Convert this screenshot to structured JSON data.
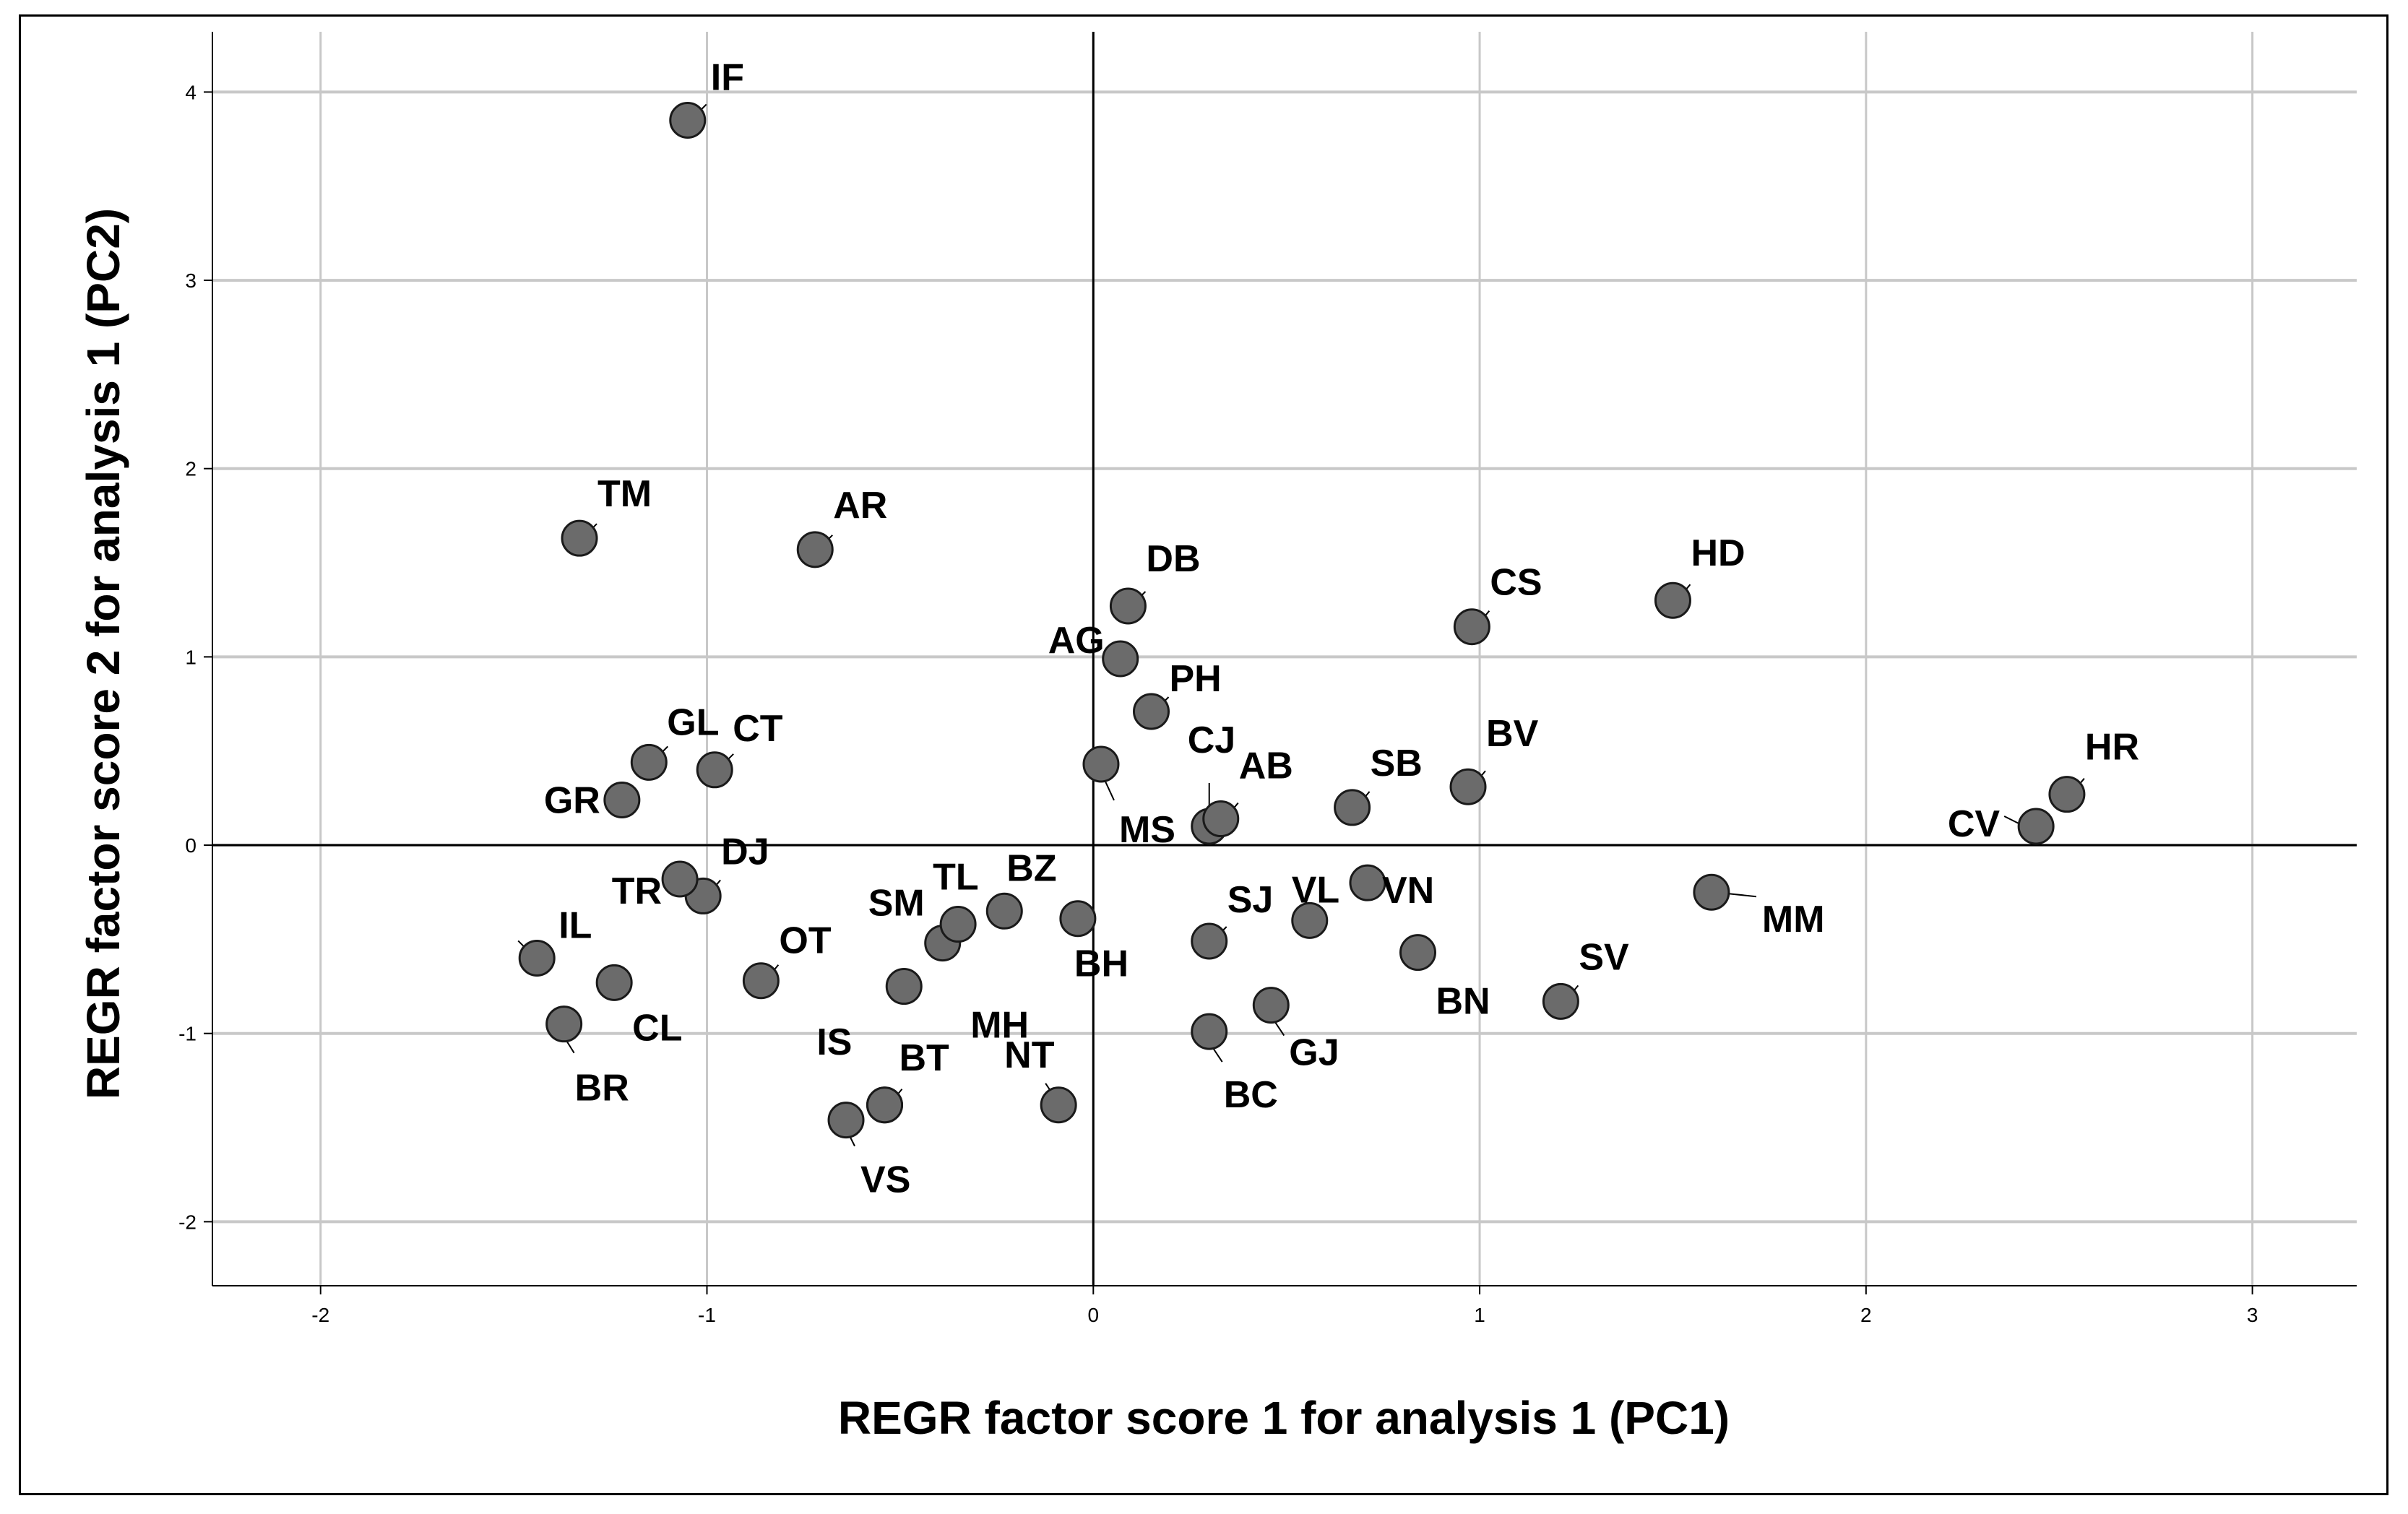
{
  "chart_data": {
    "type": "scatter",
    "xlabel": "REGR factor score   1 for analysis 1 (PC1)",
    "ylabel": "REGR factor score   2 for analysis 1 (PC2)",
    "xlim": [
      -2.28,
      3.27
    ],
    "ylim": [
      -2.34,
      4.32
    ],
    "x_ticks": [
      -2,
      -1,
      0,
      1,
      2,
      3
    ],
    "y_ticks": [
      -2,
      -1,
      0,
      1,
      2,
      3,
      4
    ],
    "grid": true,
    "reference_lines": {
      "x": 0,
      "y": 0
    },
    "marker_color": "#6b6b6b",
    "points": [
      {
        "label": "IF",
        "x": -1.05,
        "y": 3.85
      },
      {
        "label": "TM",
        "x": -1.33,
        "y": 1.63
      },
      {
        "label": "AR",
        "x": -0.72,
        "y": 1.57
      },
      {
        "label": "DB",
        "x": 0.09,
        "y": 1.27
      },
      {
        "label": "AG",
        "x": 0.07,
        "y": 0.99
      },
      {
        "label": "PH",
        "x": 0.15,
        "y": 0.71
      },
      {
        "label": "CS",
        "x": 0.98,
        "y": 1.16
      },
      {
        "label": "HD",
        "x": 1.5,
        "y": 1.3
      },
      {
        "label": "GL",
        "x": -1.15,
        "y": 0.44
      },
      {
        "label": "CT",
        "x": -0.98,
        "y": 0.4
      },
      {
        "label": "GR",
        "x": -1.22,
        "y": 0.24
      },
      {
        "label": "MS",
        "x": 0.02,
        "y": 0.43
      },
      {
        "label": "CJ",
        "x": 0.3,
        "y": 0.1
      },
      {
        "label": "AB",
        "x": 0.33,
        "y": 0.14
      },
      {
        "label": "SB",
        "x": 0.67,
        "y": 0.2
      },
      {
        "label": "BV",
        "x": 0.97,
        "y": 0.31
      },
      {
        "label": "HR",
        "x": 2.52,
        "y": 0.27
      },
      {
        "label": "CV",
        "x": 2.44,
        "y": 0.1
      },
      {
        "label": "DJ",
        "x": -1.01,
        "y": -0.27
      },
      {
        "label": "TR",
        "x": -1.07,
        "y": -0.18
      },
      {
        "label": "IL",
        "x": -1.44,
        "y": -0.6
      },
      {
        "label": "CL",
        "x": -1.24,
        "y": -0.73
      },
      {
        "label": "BR",
        "x": -1.37,
        "y": -0.95
      },
      {
        "label": "OT",
        "x": -0.86,
        "y": -0.72
      },
      {
        "label": "SM",
        "x": -0.39,
        "y": -0.52
      },
      {
        "label": "TL",
        "x": -0.35,
        "y": -0.42
      },
      {
        "label": "BZ",
        "x": -0.23,
        "y": -0.35
      },
      {
        "label": "MH",
        "x": -0.49,
        "y": -0.75
      },
      {
        "label": "BH",
        "x": -0.04,
        "y": -0.39
      },
      {
        "label": "SJ",
        "x": 0.3,
        "y": -0.51
      },
      {
        "label": "VL",
        "x": 0.56,
        "y": -0.4
      },
      {
        "label": "VN",
        "x": 0.71,
        "y": -0.2
      },
      {
        "label": "BN",
        "x": 0.84,
        "y": -0.57
      },
      {
        "label": "MM",
        "x": 1.6,
        "y": -0.25
      },
      {
        "label": "SV",
        "x": 1.21,
        "y": -0.83
      },
      {
        "label": "GJ",
        "x": 0.46,
        "y": -0.85
      },
      {
        "label": "BC",
        "x": 0.3,
        "y": -0.99
      },
      {
        "label": "IS",
        "x": -0.54,
        "y": -1.38
      },
      {
        "label": "BT",
        "x": -0.54,
        "y": -1.38
      },
      {
        "label": "VS",
        "x": -0.64,
        "y": -1.46
      },
      {
        "label": "NT",
        "x": -0.09,
        "y": -1.38
      }
    ]
  }
}
